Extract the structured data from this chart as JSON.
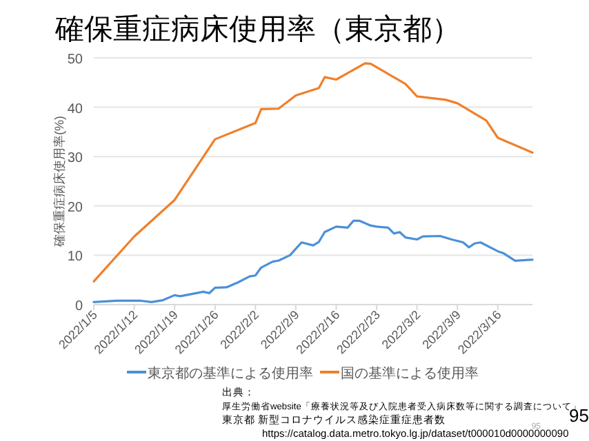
{
  "chart_data": {
    "type": "line",
    "title": "確保重症病床使用率（東京都）",
    "ylabel": "確保重症病床使用率(%)",
    "xlim": [
      "2022-01-05",
      "2022-03-22"
    ],
    "ylim": [
      0,
      50
    ],
    "yticks": [
      0,
      10,
      20,
      30,
      40,
      50
    ],
    "xticks": [
      {
        "value": "2022-01-05",
        "label": "2022/1/5"
      },
      {
        "value": "2022-01-12",
        "label": "2022/1/12"
      },
      {
        "value": "2022-01-19",
        "label": "2022/1/19"
      },
      {
        "value": "2022-01-26",
        "label": "2022/1/26"
      },
      {
        "value": "2022-02-02",
        "label": "2022/2/2"
      },
      {
        "value": "2022-02-09",
        "label": "2022/2/9"
      },
      {
        "value": "2022-02-16",
        "label": "2022/2/16"
      },
      {
        "value": "2022-02-23",
        "label": "2022/2/23"
      },
      {
        "value": "2022-03-02",
        "label": "2022/3/2"
      },
      {
        "value": "2022-03-09",
        "label": "2022/3/9"
      },
      {
        "value": "2022-03-16",
        "label": "2022/3/16"
      }
    ],
    "grid": "y",
    "legend": "bottom",
    "series": [
      {
        "name": "東京都の基準による使用率",
        "color": "#4a90d9",
        "x": [
          "2022-01-05",
          "2022-01-09",
          "2022-01-13",
          "2022-01-15",
          "2022-01-17",
          "2022-01-19",
          "2022-01-20",
          "2022-01-24",
          "2022-01-25",
          "2022-01-26",
          "2022-01-28",
          "2022-01-30",
          "2022-02-01",
          "2022-02-02",
          "2022-02-03",
          "2022-02-05",
          "2022-02-06",
          "2022-02-08",
          "2022-02-10",
          "2022-02-12",
          "2022-02-13",
          "2022-02-14",
          "2022-02-16",
          "2022-02-18",
          "2022-02-19",
          "2022-02-20",
          "2022-02-22",
          "2022-02-23",
          "2022-02-25",
          "2022-02-26",
          "2022-02-27",
          "2022-02-28",
          "2022-03-02",
          "2022-03-03",
          "2022-03-06",
          "2022-03-08",
          "2022-03-10",
          "2022-03-11",
          "2022-03-12",
          "2022-03-13",
          "2022-03-16",
          "2022-03-17",
          "2022-03-19",
          "2022-03-22"
        ],
        "values": [
          0.5,
          0.8,
          0.8,
          0.5,
          0.9,
          1.9,
          1.7,
          2.6,
          2.3,
          3.4,
          3.5,
          4.5,
          5.7,
          5.9,
          7.5,
          8.7,
          8.9,
          10.0,
          12.6,
          12.0,
          12.7,
          14.7,
          15.8,
          15.6,
          17.0,
          17.0,
          16.0,
          15.8,
          15.6,
          14.4,
          14.7,
          13.6,
          13.2,
          13.8,
          13.9,
          13.2,
          12.6,
          11.6,
          12.4,
          12.6,
          10.8,
          10.4,
          8.9,
          9.1
        ]
      },
      {
        "name": "国の基準による使用率",
        "color": "#f07f2a",
        "x": [
          "2022-01-05",
          "2022-01-12",
          "2022-01-19",
          "2022-01-26",
          "2022-02-02",
          "2022-02-03",
          "2022-02-06",
          "2022-02-09",
          "2022-02-13",
          "2022-02-14",
          "2022-02-16",
          "2022-02-21",
          "2022-02-22",
          "2022-02-28",
          "2022-03-02",
          "2022-03-07",
          "2022-03-09",
          "2022-03-14",
          "2022-03-16",
          "2022-03-22"
        ],
        "values": [
          4.7,
          13.8,
          21.2,
          33.5,
          36.8,
          39.6,
          39.7,
          42.4,
          43.9,
          46.1,
          45.6,
          48.9,
          48.8,
          44.7,
          42.2,
          41.5,
          40.8,
          37.3,
          33.8,
          30.8
        ]
      }
    ],
    "annotations": [
      "出典：",
      "厚生労働省website「療養状況等及び入院患者受入病床数等に関する調査について」",
      "東京都 新型コロナウイルス感染症重症患者数",
      "https://catalog.data.metro.tokyo.lg.jp/dataset/t000010d0000000090",
      "95",
      "95"
    ]
  }
}
